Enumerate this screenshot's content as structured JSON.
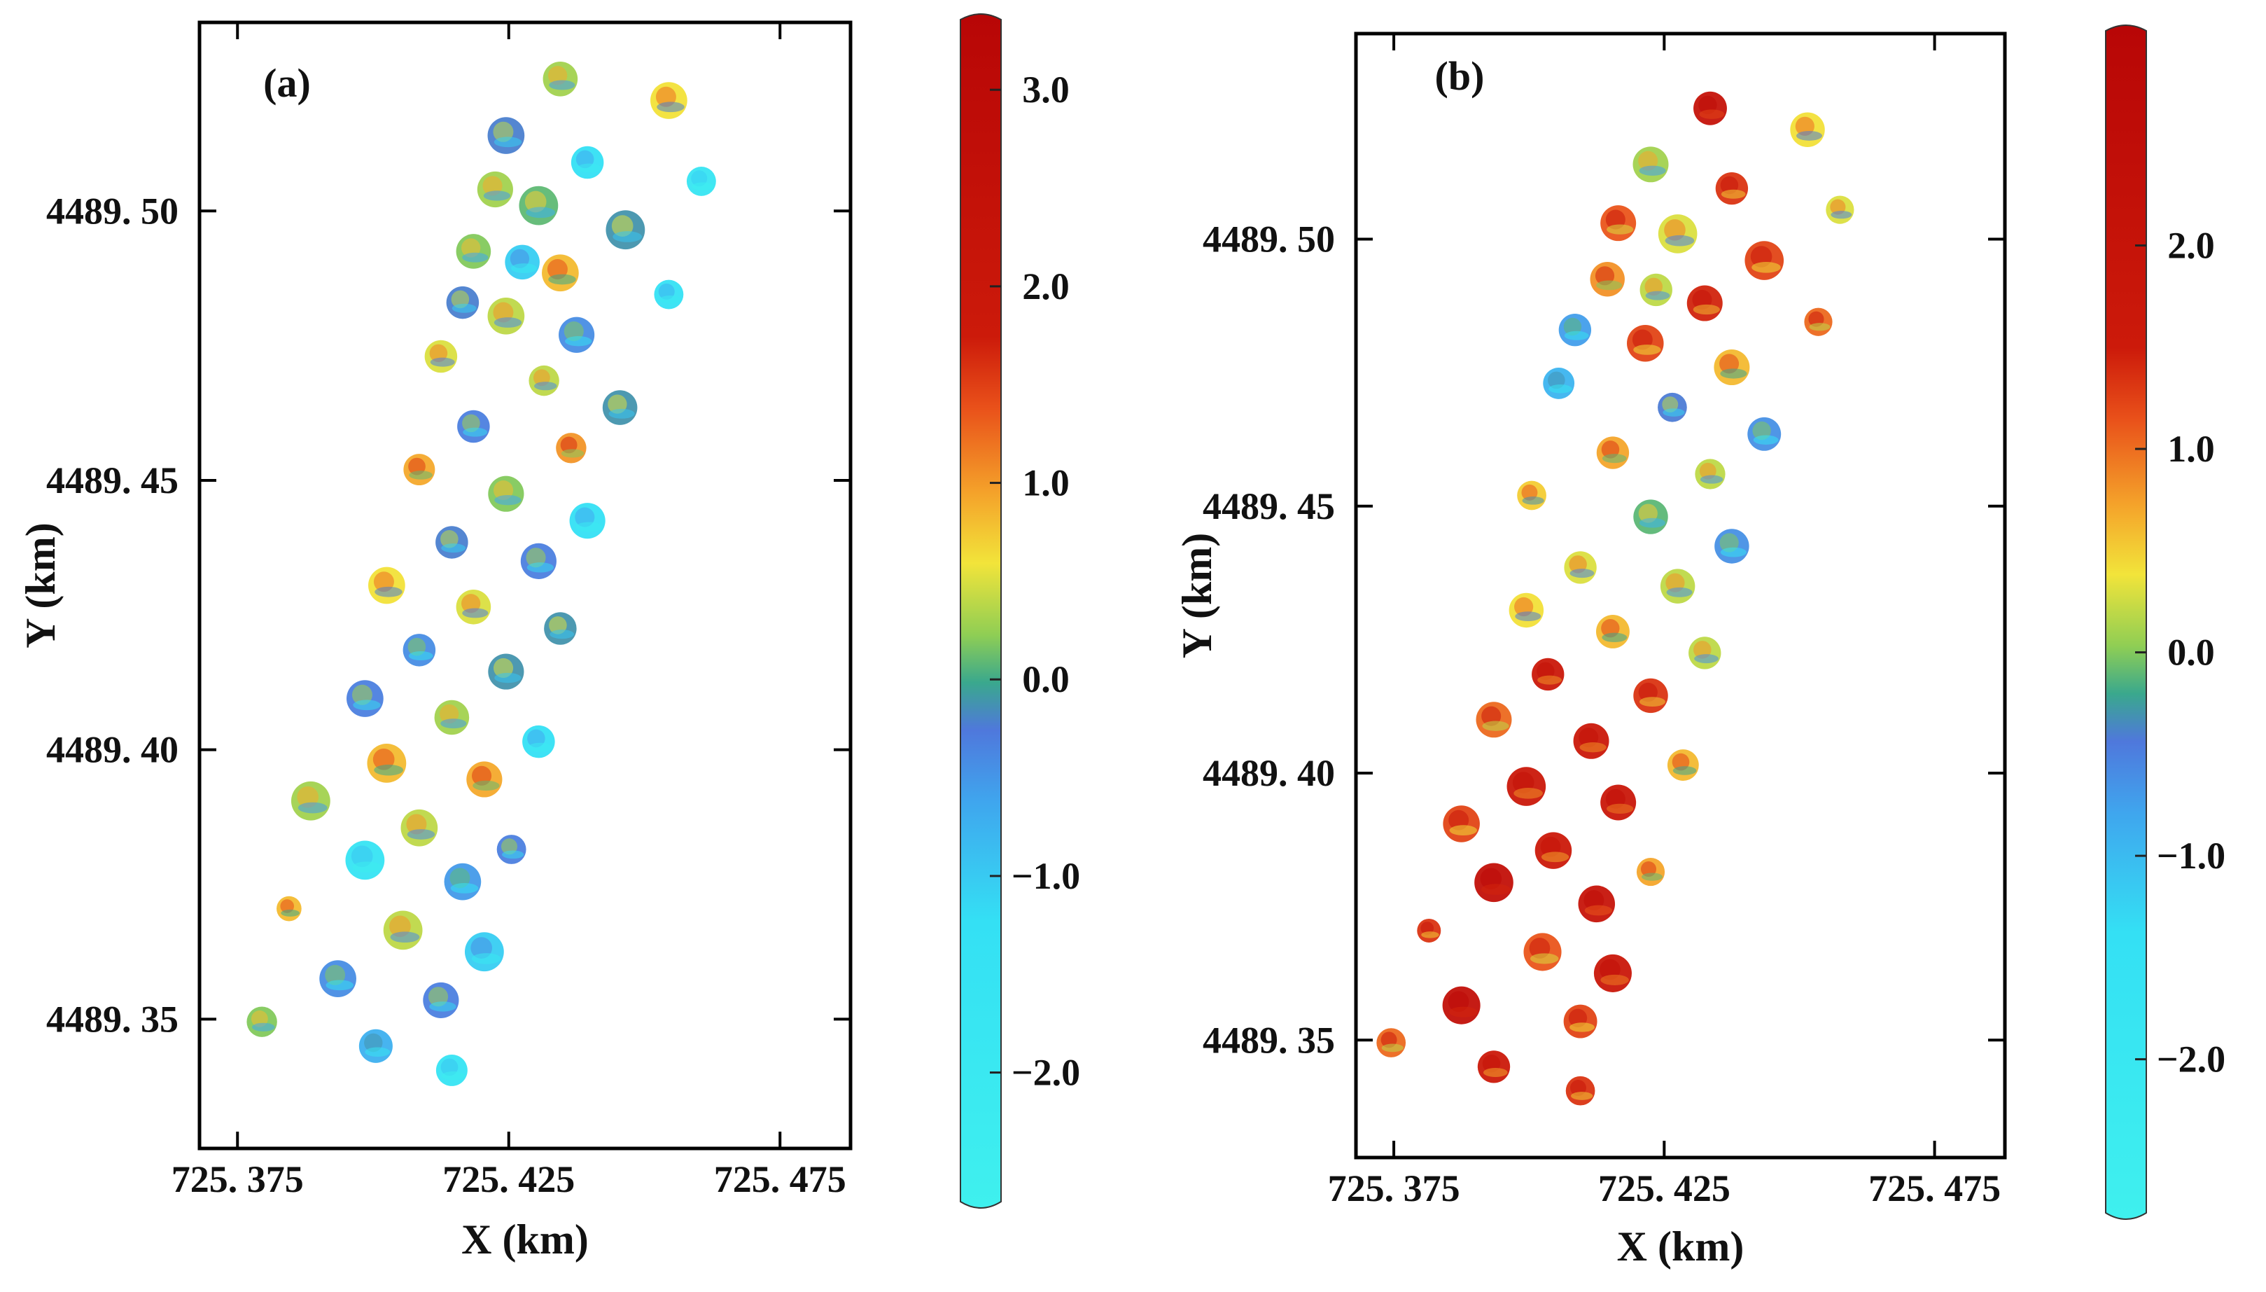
{
  "chart_data": [
    {
      "type": "scatter",
      "panel_label": "(a)",
      "xlabel": "X (km)",
      "ylabel": "Y (km)",
      "xlim": [
        725.368,
        725.488
      ],
      "ylim": [
        4489.326,
        4489.535
      ],
      "x_ticks": [
        725.375,
        725.425,
        725.475
      ],
      "x_tick_labels": [
        "725. 375",
        "725. 425",
        "725. 475"
      ],
      "y_ticks": [
        4489.35,
        4489.4,
        4489.45,
        4489.5
      ],
      "y_tick_labels": [
        "4489. 35",
        "4489. 40",
        "4489. 45",
        "4489. 50"
      ],
      "colorbar": {
        "range": [
          -2.6,
          3.3
        ],
        "ticks": [
          3.0,
          2.0,
          1.0,
          0.0,
          -1.0,
          -2.0
        ],
        "tick_labels": [
          "3.0",
          "2.0",
          "1.0",
          "0.0",
          "−1.0",
          "−2.0"
        ]
      },
      "points": [
        {
          "x": 725.4345,
          "y": 4489.5245,
          "r": 0.0032,
          "v": 0.3
        },
        {
          "x": 725.4545,
          "y": 4489.5205,
          "r": 0.0034,
          "v": 0.6
        },
        {
          "x": 725.4245,
          "y": 4489.514,
          "r": 0.0034,
          "v": -0.2
        },
        {
          "x": 725.4395,
          "y": 4489.509,
          "r": 0.003,
          "v": -1.2
        },
        {
          "x": 725.4605,
          "y": 4489.5055,
          "r": 0.0027,
          "v": -1.6
        },
        {
          "x": 725.4225,
          "y": 4489.504,
          "r": 0.0033,
          "v": 0.3
        },
        {
          "x": 725.4305,
          "y": 4489.501,
          "r": 0.0036,
          "v": 0.1
        },
        {
          "x": 725.4465,
          "y": 4489.4965,
          "r": 0.0036,
          "v": -0.1
        },
        {
          "x": 725.4185,
          "y": 4489.4925,
          "r": 0.0032,
          "v": 0.2
        },
        {
          "x": 725.4275,
          "y": 4489.4905,
          "r": 0.0032,
          "v": -1.0
        },
        {
          "x": 725.4345,
          "y": 4489.4885,
          "r": 0.0034,
          "v": 0.8
        },
        {
          "x": 725.4545,
          "y": 4489.4845,
          "r": 0.0027,
          "v": -1.3
        },
        {
          "x": 725.4165,
          "y": 4489.483,
          "r": 0.003,
          "v": -0.2
        },
        {
          "x": 725.4245,
          "y": 4489.4805,
          "r": 0.0034,
          "v": 0.4
        },
        {
          "x": 725.4375,
          "y": 4489.477,
          "r": 0.0033,
          "v": -0.4
        },
        {
          "x": 725.4125,
          "y": 4489.473,
          "r": 0.003,
          "v": 0.5
        },
        {
          "x": 725.4315,
          "y": 4489.4685,
          "r": 0.0028,
          "v": 0.4
        },
        {
          "x": 725.4455,
          "y": 4489.4635,
          "r": 0.0032,
          "v": -0.1
        },
        {
          "x": 725.4185,
          "y": 4489.46,
          "r": 0.003,
          "v": -0.3
        },
        {
          "x": 725.4365,
          "y": 4489.456,
          "r": 0.0028,
          "v": 1.0
        },
        {
          "x": 725.4085,
          "y": 4489.452,
          "r": 0.0029,
          "v": 0.9
        },
        {
          "x": 725.4245,
          "y": 4489.4475,
          "r": 0.0033,
          "v": 0.2
        },
        {
          "x": 725.4395,
          "y": 4489.4425,
          "r": 0.0033,
          "v": -1.2
        },
        {
          "x": 725.4145,
          "y": 4489.4385,
          "r": 0.003,
          "v": -0.2
        },
        {
          "x": 725.4305,
          "y": 4489.435,
          "r": 0.0033,
          "v": -0.3
        },
        {
          "x": 725.4025,
          "y": 4489.4305,
          "r": 0.0034,
          "v": 0.6
        },
        {
          "x": 725.4185,
          "y": 4489.4265,
          "r": 0.0032,
          "v": 0.5
        },
        {
          "x": 725.4345,
          "y": 4489.4225,
          "r": 0.003,
          "v": -0.1
        },
        {
          "x": 725.4085,
          "y": 4489.4185,
          "r": 0.003,
          "v": -0.4
        },
        {
          "x": 725.4245,
          "y": 4489.4145,
          "r": 0.0033,
          "v": -0.1
        },
        {
          "x": 725.3985,
          "y": 4489.4095,
          "r": 0.0034,
          "v": -0.3
        },
        {
          "x": 725.4145,
          "y": 4489.406,
          "r": 0.0032,
          "v": 0.3
        },
        {
          "x": 725.4305,
          "y": 4489.4015,
          "r": 0.003,
          "v": -1.2
        },
        {
          "x": 725.4025,
          "y": 4489.3975,
          "r": 0.0036,
          "v": 0.8
        },
        {
          "x": 725.4205,
          "y": 4489.3945,
          "r": 0.0033,
          "v": 0.9
        },
        {
          "x": 725.3885,
          "y": 4489.3905,
          "r": 0.0036,
          "v": 0.3
        },
        {
          "x": 725.4085,
          "y": 4489.3855,
          "r": 0.0034,
          "v": 0.4
        },
        {
          "x": 725.3985,
          "y": 4489.3795,
          "r": 0.0036,
          "v": -1.5
        },
        {
          "x": 725.4255,
          "y": 4489.3815,
          "r": 0.0027,
          "v": -0.3
        },
        {
          "x": 725.4165,
          "y": 4489.3755,
          "r": 0.0034,
          "v": -0.5
        },
        {
          "x": 725.3845,
          "y": 4489.3705,
          "r": 0.0023,
          "v": 0.8
        },
        {
          "x": 725.4055,
          "y": 4489.3665,
          "r": 0.0036,
          "v": 0.4
        },
        {
          "x": 725.4205,
          "y": 4489.3625,
          "r": 0.0036,
          "v": -1.0
        },
        {
          "x": 725.3935,
          "y": 4489.3575,
          "r": 0.0034,
          "v": -0.4
        },
        {
          "x": 725.4125,
          "y": 4489.3535,
          "r": 0.0033,
          "v": -0.3
        },
        {
          "x": 725.3795,
          "y": 4489.3495,
          "r": 0.0028,
          "v": 0.2
        },
        {
          "x": 725.4005,
          "y": 4489.345,
          "r": 0.0031,
          "v": -0.7
        },
        {
          "x": 725.4145,
          "y": 4489.3405,
          "r": 0.0029,
          "v": -1.5
        }
      ]
    },
    {
      "type": "scatter",
      "panel_label": "(b)",
      "xlabel": "X (km)",
      "ylabel": "Y (km)",
      "xlim": [
        725.368,
        725.488
      ],
      "ylim": [
        4489.328,
        4489.5385
      ],
      "x_ticks": [
        725.375,
        725.425,
        725.475
      ],
      "x_tick_labels": [
        "725. 375",
        "725. 425",
        "725. 475"
      ],
      "y_ticks": [
        4489.35,
        4489.4,
        4489.45,
        4489.5
      ],
      "y_tick_labels": [
        "4489. 35",
        "4489. 40",
        "4489. 45",
        "4489. 50"
      ],
      "colorbar": {
        "range": [
          -2.7,
          3.0
        ],
        "ticks": [
          2.0,
          1.0,
          0.0,
          -1.0,
          -2.0
        ],
        "tick_labels": [
          "2.0",
          "1.0",
          "0.0",
          "−1.0",
          "−2.0"
        ]
      },
      "points": [
        {
          "x": 725.4335,
          "y": 4489.5245,
          "r": 0.0031,
          "v": 2.0
        },
        {
          "x": 725.4515,
          "y": 4489.5205,
          "r": 0.0032,
          "v": 0.4
        },
        {
          "x": 725.4225,
          "y": 4489.514,
          "r": 0.0033,
          "v": 0.1
        },
        {
          "x": 725.4375,
          "y": 4489.5095,
          "r": 0.003,
          "v": 1.3
        },
        {
          "x": 725.4575,
          "y": 4489.5055,
          "r": 0.0026,
          "v": 0.3
        },
        {
          "x": 725.4165,
          "y": 4489.503,
          "r": 0.0033,
          "v": 1.1
        },
        {
          "x": 725.4275,
          "y": 4489.501,
          "r": 0.0036,
          "v": 0.3
        },
        {
          "x": 725.4435,
          "y": 4489.496,
          "r": 0.0036,
          "v": 1.2
        },
        {
          "x": 725.4145,
          "y": 4489.4925,
          "r": 0.0032,
          "v": 0.8
        },
        {
          "x": 725.4325,
          "y": 4489.488,
          "r": 0.0033,
          "v": 1.4
        },
        {
          "x": 725.4235,
          "y": 4489.4905,
          "r": 0.003,
          "v": 0.2
        },
        {
          "x": 725.4535,
          "y": 4489.4845,
          "r": 0.0026,
          "v": 1.0
        },
        {
          "x": 725.4085,
          "y": 4489.483,
          "r": 0.003,
          "v": -0.7
        },
        {
          "x": 725.4215,
          "y": 4489.4805,
          "r": 0.0034,
          "v": 1.2
        },
        {
          "x": 725.4375,
          "y": 4489.476,
          "r": 0.0033,
          "v": 0.6
        },
        {
          "x": 725.4055,
          "y": 4489.473,
          "r": 0.0029,
          "v": -0.9
        },
        {
          "x": 725.4265,
          "y": 4489.4685,
          "r": 0.0027,
          "v": -0.4
        },
        {
          "x": 725.4435,
          "y": 4489.4635,
          "r": 0.0031,
          "v": -0.6
        },
        {
          "x": 725.4155,
          "y": 4489.46,
          "r": 0.003,
          "v": 0.7
        },
        {
          "x": 725.4335,
          "y": 4489.456,
          "r": 0.0028,
          "v": 0.2
        },
        {
          "x": 725.4005,
          "y": 4489.452,
          "r": 0.0027,
          "v": 0.5
        },
        {
          "x": 725.4225,
          "y": 4489.448,
          "r": 0.0032,
          "v": -0.1
        },
        {
          "x": 725.4375,
          "y": 4489.4425,
          "r": 0.0032,
          "v": -0.6
        },
        {
          "x": 725.4095,
          "y": 4489.4385,
          "r": 0.003,
          "v": 0.3
        },
        {
          "x": 725.4275,
          "y": 4489.435,
          "r": 0.0032,
          "v": 0.2
        },
        {
          "x": 725.3995,
          "y": 4489.4305,
          "r": 0.0032,
          "v": 0.4
        },
        {
          "x": 725.4155,
          "y": 4489.4265,
          "r": 0.0031,
          "v": 0.6
        },
        {
          "x": 725.4325,
          "y": 4489.4225,
          "r": 0.003,
          "v": 0.2
        },
        {
          "x": 725.4035,
          "y": 4489.4185,
          "r": 0.003,
          "v": 1.6
        },
        {
          "x": 725.4225,
          "y": 4489.4145,
          "r": 0.0032,
          "v": 1.3
        },
        {
          "x": 725.3935,
          "y": 4489.41,
          "r": 0.0033,
          "v": 1.0
        },
        {
          "x": 725.4115,
          "y": 4489.406,
          "r": 0.0033,
          "v": 1.6
        },
        {
          "x": 725.4285,
          "y": 4489.4015,
          "r": 0.0029,
          "v": 0.6
        },
        {
          "x": 725.3995,
          "y": 4489.3975,
          "r": 0.0036,
          "v": 1.6
        },
        {
          "x": 725.4165,
          "y": 4489.3945,
          "r": 0.0033,
          "v": 1.7
        },
        {
          "x": 725.3875,
          "y": 4489.3905,
          "r": 0.0034,
          "v": 1.2
        },
        {
          "x": 725.4045,
          "y": 4489.3855,
          "r": 0.0034,
          "v": 1.5
        },
        {
          "x": 725.3935,
          "y": 4489.3795,
          "r": 0.0036,
          "v": 2.2
        },
        {
          "x": 725.4225,
          "y": 4489.3815,
          "r": 0.0026,
          "v": 0.7
        },
        {
          "x": 725.4125,
          "y": 4489.3755,
          "r": 0.0034,
          "v": 1.9
        },
        {
          "x": 725.3815,
          "y": 4489.3705,
          "r": 0.0022,
          "v": 1.3
        },
        {
          "x": 725.4025,
          "y": 4489.3665,
          "r": 0.0035,
          "v": 1.1
        },
        {
          "x": 725.4155,
          "y": 4489.3625,
          "r": 0.0035,
          "v": 1.7
        },
        {
          "x": 725.3875,
          "y": 4489.3565,
          "r": 0.0035,
          "v": 2.2
        },
        {
          "x": 725.4095,
          "y": 4489.3535,
          "r": 0.0031,
          "v": 1.2
        },
        {
          "x": 725.3745,
          "y": 4489.3495,
          "r": 0.0027,
          "v": 1.0
        },
        {
          "x": 725.3935,
          "y": 4489.345,
          "r": 0.003,
          "v": 1.5
        },
        {
          "x": 725.4095,
          "y": 4489.3405,
          "r": 0.0027,
          "v": 1.3
        }
      ]
    }
  ]
}
